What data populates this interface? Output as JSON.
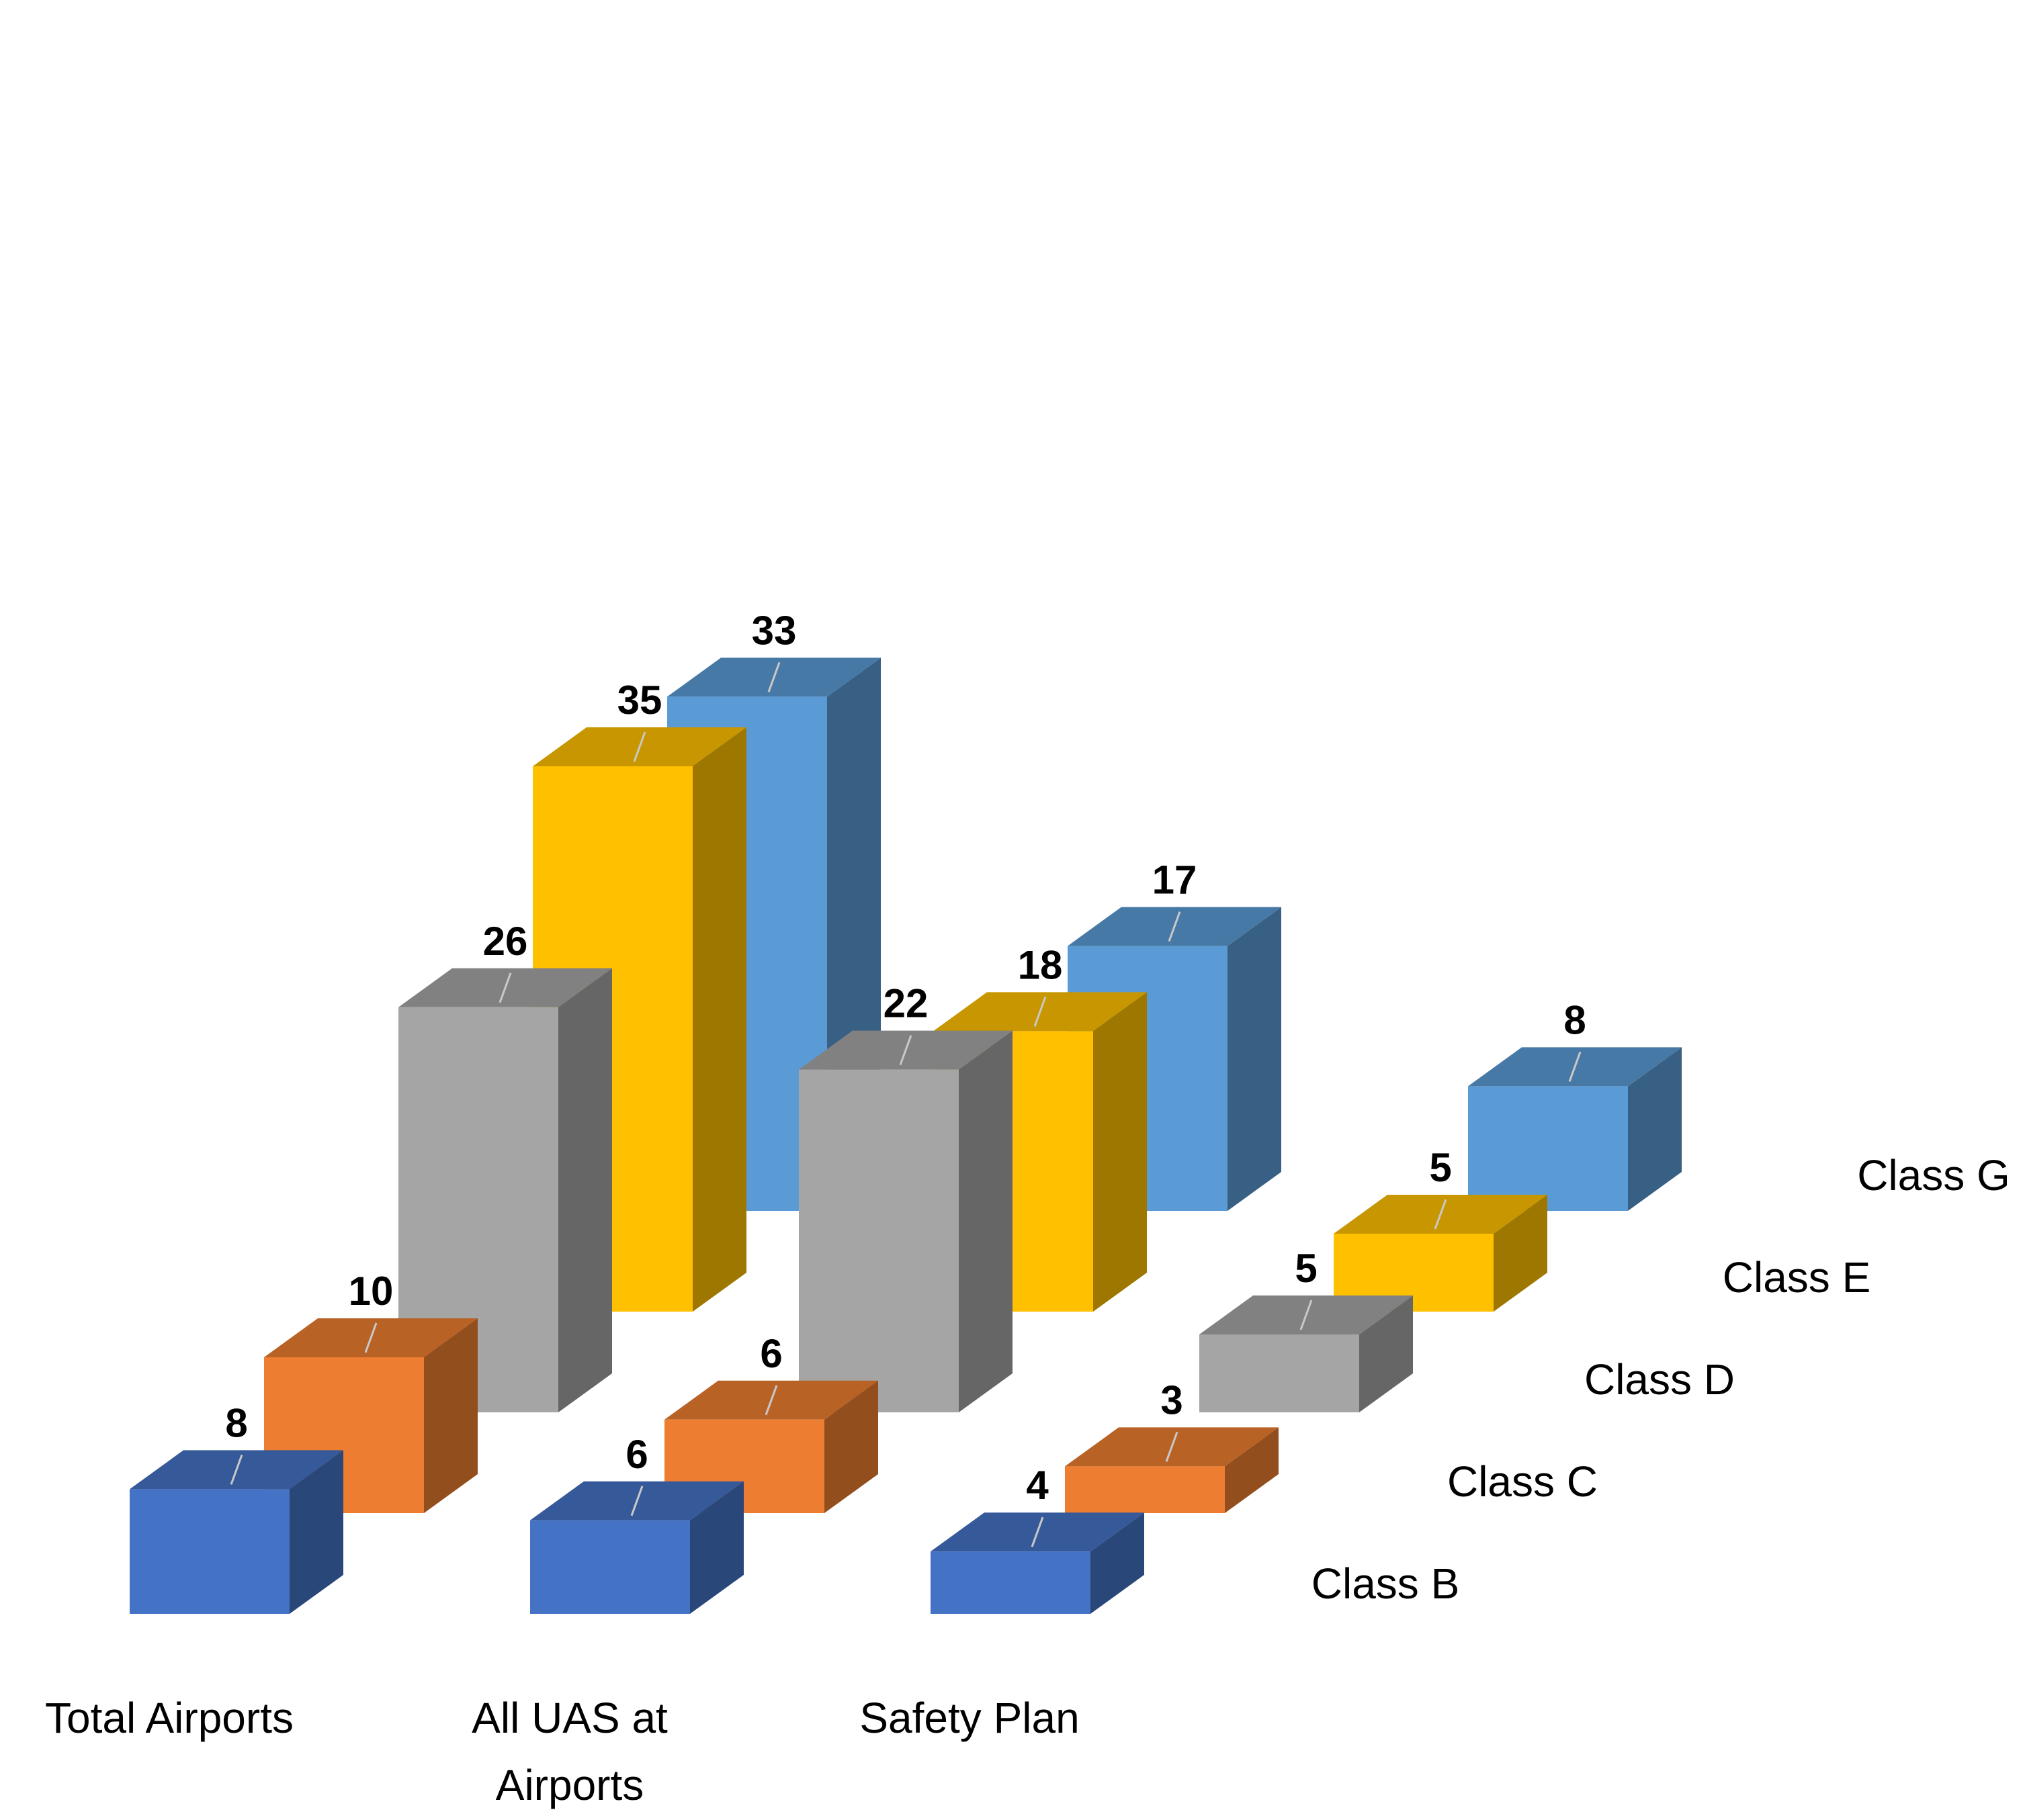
{
  "chart_data": {
    "type": "bar",
    "subtype": "3d-column",
    "title": "",
    "categories": [
      "Total Airports",
      "All UAS at Airports",
      "Safety Plan"
    ],
    "series": [
      {
        "name": "Class B",
        "values": [
          8,
          6,
          4
        ],
        "color": "#4472c4"
      },
      {
        "name": "Class C",
        "values": [
          10,
          6,
          3
        ],
        "color": "#ed7d31"
      },
      {
        "name": "Class D",
        "values": [
          26,
          22,
          5
        ],
        "color": "#a5a5a5"
      },
      {
        "name": "Class E",
        "values": [
          35,
          18,
          5
        ],
        "color": "#ffc000"
      },
      {
        "name": "Class G",
        "values": [
          33,
          17,
          8
        ],
        "color": "#5b9bd5"
      }
    ],
    "data_labels": true,
    "legend": "right-depth-axis",
    "grid": false
  }
}
